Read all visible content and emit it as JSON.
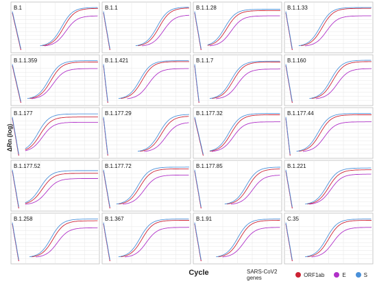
{
  "ylabel": "ΔRn (log)",
  "xlabel": "Cycle",
  "legend": {
    "title": "SARS-CoV2 genes",
    "items": [
      {
        "name": "ORF1ab",
        "color": "#cc2233"
      },
      {
        "name": "E",
        "color": "#b030c8"
      },
      {
        "name": "S",
        "color": "#4a90d9"
      }
    ]
  },
  "chart_data": {
    "type": "line",
    "grid": true,
    "panel_x_range": [
      0,
      40
    ],
    "panel_y_range": [
      0,
      1
    ],
    "series_colors": {
      "ORF1ab": "#cc2233",
      "E": "#b030c8",
      "S": "#4a90d9"
    },
    "panels": [
      {
        "title": "B.1",
        "mid": {
          "ORF1ab": 24,
          "E": 25,
          "S": 23
        },
        "plateau": {
          "ORF1ab": 0.95,
          "E": 0.78,
          "S": 0.97
        },
        "dip": 4
      },
      {
        "title": "B.1.1",
        "mid": {
          "ORF1ab": 26,
          "E": 28,
          "S": 25
        },
        "plateau": {
          "ORF1ab": 0.96,
          "E": 0.8,
          "S": 0.98
        },
        "dip": 3
      },
      {
        "title": "B.1.1.28",
        "mid": {
          "ORF1ab": 15,
          "E": 17,
          "S": 14
        },
        "plateau": {
          "ORF1ab": 0.9,
          "E": 0.78,
          "S": 0.93
        },
        "dip": 3
      },
      {
        "title": "B.1.1.33",
        "mid": {
          "ORF1ab": 17,
          "E": 19,
          "S": 16
        },
        "plateau": {
          "ORF1ab": 0.95,
          "E": 0.78,
          "S": 0.97
        },
        "dip": 3
      },
      {
        "title": "B.1.1.359",
        "mid": {
          "ORF1ab": 18,
          "E": 19,
          "S": 17
        },
        "plateau": {
          "ORF1ab": 0.93,
          "E": 0.78,
          "S": 0.96
        },
        "dip": 4
      },
      {
        "title": "B.1.1.421",
        "mid": {
          "ORF1ab": 18,
          "E": 21,
          "S": 17
        },
        "plateau": {
          "ORF1ab": 0.94,
          "E": 0.78,
          "S": 0.96
        },
        "dip": 2
      },
      {
        "title": "B.1.1.7",
        "mid": {
          "ORF1ab": 18,
          "E": 20,
          "S": 17
        },
        "plateau": {
          "ORF1ab": 0.93,
          "E": 0.77,
          "S": 0.95
        },
        "dip": 2
      },
      {
        "title": "B.1.160",
        "mid": {
          "ORF1ab": 22,
          "E": 24,
          "S": 21
        },
        "plateau": {
          "ORF1ab": 0.94,
          "E": 0.78,
          "S": 0.97
        },
        "dip": 3
      },
      {
        "title": "B.1.177",
        "mid": {
          "ORF1ab": 13,
          "E": 14,
          "S": 12
        },
        "plateau": {
          "ORF1ab": 0.88,
          "E": 0.76,
          "S": 0.95
        },
        "dip": 3
      },
      {
        "title": "B.1.177.29",
        "mid": {
          "ORF1ab": 27,
          "E": 29,
          "S": 26
        },
        "plateau": {
          "ORF1ab": 0.9,
          "E": 0.76,
          "S": 0.94
        },
        "dip": 2
      },
      {
        "title": "B.1.177.32",
        "mid": {
          "ORF1ab": 17,
          "E": 18,
          "S": 16
        },
        "plateau": {
          "ORF1ab": 0.93,
          "E": 0.77,
          "S": 0.96
        },
        "dip": 4
      },
      {
        "title": "B.1.177.44",
        "mid": {
          "ORF1ab": 16,
          "E": 18,
          "S": 15
        },
        "plateau": {
          "ORF1ab": 0.93,
          "E": 0.77,
          "S": 0.96
        },
        "dip": 2
      },
      {
        "title": "B.1.177.52",
        "mid": {
          "ORF1ab": 14,
          "E": 16,
          "S": 13
        },
        "plateau": {
          "ORF1ab": 0.8,
          "E": 0.68,
          "S": 0.86
        },
        "dip": 3
      },
      {
        "title": "B.1.177.72",
        "mid": {
          "ORF1ab": 17,
          "E": 19,
          "S": 16
        },
        "plateau": {
          "ORF1ab": 0.9,
          "E": 0.76,
          "S": 0.94
        },
        "dip": 3
      },
      {
        "title": "B.1.177.85",
        "mid": {
          "ORF1ab": 25,
          "E": 27,
          "S": 24
        },
        "plateau": {
          "ORF1ab": 0.9,
          "E": 0.76,
          "S": 0.94
        },
        "dip": 3
      },
      {
        "title": "B.1.221",
        "mid": {
          "ORF1ab": 20,
          "E": 21,
          "S": 19
        },
        "plateau": {
          "ORF1ab": 0.88,
          "E": 0.78,
          "S": 0.92
        },
        "dip": 3
      },
      {
        "title": "B.1.258",
        "mid": {
          "ORF1ab": 19,
          "E": 21,
          "S": 18
        },
        "plateau": {
          "ORF1ab": 0.92,
          "E": 0.76,
          "S": 0.96
        },
        "dip": 3
      },
      {
        "title": "B.1.367",
        "mid": {
          "ORF1ab": 18,
          "E": 20,
          "S": 17
        },
        "plateau": {
          "ORF1ab": 0.93,
          "E": 0.77,
          "S": 0.96
        },
        "dip": 3
      },
      {
        "title": "B.1.91",
        "mid": {
          "ORF1ab": 21,
          "E": 23,
          "S": 20
        },
        "plateau": {
          "ORF1ab": 0.93,
          "E": 0.77,
          "S": 0.96
        },
        "dip": 3
      },
      {
        "title": "C.35",
        "mid": {
          "ORF1ab": 20,
          "E": 22,
          "S": 19
        },
        "plateau": {
          "ORF1ab": 0.93,
          "E": 0.77,
          "S": 0.96
        },
        "dip": 3
      }
    ]
  }
}
